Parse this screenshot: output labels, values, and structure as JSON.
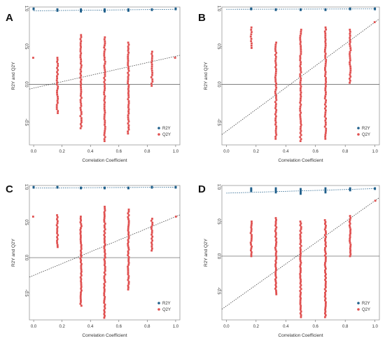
{
  "legend": {
    "r2_label": "R2Y",
    "q2_label": "Q2Y"
  },
  "colors": {
    "r2": "#1f5f8b",
    "q2": "#e05050",
    "frame": "#999999",
    "zero_line": "#555555",
    "trend": "#444444"
  },
  "chart_data": [
    {
      "panel": "A",
      "type": "scatter",
      "xlabel": "Correlation Coefficient",
      "ylabel": "R2Y and Q2Y",
      "xlim": [
        -0.03,
        1.03
      ],
      "ylim": [
        -0.8,
        1.02
      ],
      "x_ticks": [
        "0.0",
        "0.2",
        "0.4",
        "0.6",
        "0.8",
        "1.0"
      ],
      "y_ticks": [
        {
          "v": 1.0,
          "t": "1.0"
        },
        {
          "v": 0.5,
          "t": "0.5"
        },
        {
          "v": 0.0,
          "t": "0.0"
        },
        {
          "v": -0.5,
          "t": "-0.5"
        }
      ],
      "r2_clusters": [
        {
          "x": 0.0,
          "min": 0.99,
          "max": 1.0
        },
        {
          "x": 0.167,
          "min": 0.97,
          "max": 0.99
        },
        {
          "x": 0.333,
          "min": 0.96,
          "max": 0.99
        },
        {
          "x": 0.5,
          "min": 0.96,
          "max": 0.99
        },
        {
          "x": 0.667,
          "min": 0.97,
          "max": 0.99
        },
        {
          "x": 0.833,
          "min": 0.98,
          "max": 0.99
        },
        {
          "x": 1.0,
          "min": 0.99,
          "max": 1.0
        }
      ],
      "q2_clusters": [
        {
          "x": 0.0,
          "min": 0.35,
          "max": 0.35
        },
        {
          "x": 0.167,
          "min": -0.38,
          "max": 0.35
        },
        {
          "x": 0.333,
          "min": -0.58,
          "max": 0.65
        },
        {
          "x": 0.5,
          "min": -0.75,
          "max": 0.62
        },
        {
          "x": 0.667,
          "min": -0.65,
          "max": 0.55
        },
        {
          "x": 0.833,
          "min": -0.02,
          "max": 0.43
        },
        {
          "x": 1.0,
          "min": 0.35,
          "max": 0.35
        }
      ],
      "r2_trend": [
        0.97,
        0.99
      ],
      "q2_trend": [
        -0.05,
        0.37
      ]
    },
    {
      "panel": "B",
      "type": "scatter",
      "xlabel": "Correlation Coefficient",
      "ylabel": "R2Y and Q2Y",
      "xlim": [
        -0.03,
        1.03
      ],
      "ylim": [
        -0.8,
        1.02
      ],
      "x_ticks": [
        "0.0",
        "0.2",
        "0.4",
        "0.6",
        "0.8",
        "1.0"
      ],
      "y_ticks": [
        {
          "v": 1.0,
          "t": "1.0"
        },
        {
          "v": 0.5,
          "t": "0.5"
        },
        {
          "v": 0.0,
          "t": "0.0"
        },
        {
          "v": -0.5,
          "t": "-0.5"
        }
      ],
      "r2_clusters": [
        {
          "x": 0.167,
          "min": 0.99,
          "max": 1.0
        },
        {
          "x": 0.333,
          "min": 0.98,
          "max": 0.99
        },
        {
          "x": 0.5,
          "min": 0.98,
          "max": 0.99
        },
        {
          "x": 0.667,
          "min": 0.98,
          "max": 0.99
        },
        {
          "x": 0.833,
          "min": 0.99,
          "max": 1.0
        },
        {
          "x": 1.0,
          "min": 0.99,
          "max": 1.0
        }
      ],
      "q2_clusters": [
        {
          "x": 0.167,
          "min": 0.48,
          "max": 0.75
        },
        {
          "x": 0.333,
          "min": -0.72,
          "max": 0.55
        },
        {
          "x": 0.5,
          "min": -0.75,
          "max": 0.72
        },
        {
          "x": 0.667,
          "min": -0.72,
          "max": 0.75
        },
        {
          "x": 0.833,
          "min": 0.02,
          "max": 0.72
        },
        {
          "x": 1.0,
          "min": 0.82,
          "max": 0.82
        }
      ],
      "r2_trend": [
        0.99,
        0.995
      ],
      "q2_trend": [
        -0.62,
        0.82
      ]
    },
    {
      "panel": "C",
      "type": "scatter",
      "xlabel": "Correlation Coefficient",
      "ylabel": "R2Y and Q2Y",
      "xlim": [
        -0.03,
        1.03
      ],
      "ylim": [
        -0.88,
        1.02
      ],
      "x_ticks": [
        "0.0",
        "0.2",
        "0.4",
        "0.6",
        "0.8",
        "1.0"
      ],
      "y_ticks": [
        {
          "v": 1.0,
          "t": "1.0"
        },
        {
          "v": 0.5,
          "t": "0.5"
        },
        {
          "v": 0.0,
          "t": "0.0"
        },
        {
          "v": -0.5,
          "t": "-0.5"
        }
      ],
      "r2_clusters": [
        {
          "x": 0.0,
          "min": 0.99,
          "max": 1.0
        },
        {
          "x": 0.167,
          "min": 0.99,
          "max": 1.0
        },
        {
          "x": 0.333,
          "min": 0.98,
          "max": 0.99
        },
        {
          "x": 0.5,
          "min": 0.98,
          "max": 0.99
        },
        {
          "x": 0.667,
          "min": 0.98,
          "max": 0.99
        },
        {
          "x": 0.833,
          "min": 0.99,
          "max": 1.0
        },
        {
          "x": 1.0,
          "min": 0.99,
          "max": 1.0
        }
      ],
      "q2_clusters": [
        {
          "x": 0.0,
          "min": 0.58,
          "max": 0.58
        },
        {
          "x": 0.167,
          "min": 0.15,
          "max": 0.6
        },
        {
          "x": 0.333,
          "min": -0.68,
          "max": 0.58
        },
        {
          "x": 0.5,
          "min": -0.85,
          "max": 0.72
        },
        {
          "x": 0.667,
          "min": -0.45,
          "max": 0.68
        },
        {
          "x": 0.833,
          "min": 0.1,
          "max": 0.55
        },
        {
          "x": 1.0,
          "min": 0.58,
          "max": 0.58
        }
      ],
      "r2_trend": [
        0.985,
        0.995
      ],
      "q2_trend": [
        -0.25,
        0.58
      ]
    },
    {
      "panel": "D",
      "type": "scatter",
      "xlabel": "Correlation Coefficient",
      "ylabel": "R2Y and Q2Y",
      "xlim": [
        -0.03,
        1.03
      ],
      "ylim": [
        -0.92,
        1.02
      ],
      "x_ticks": [
        "0.0",
        "0.2",
        "0.4",
        "0.6",
        "0.8",
        "1.0"
      ],
      "y_ticks": [
        {
          "v": 1.0,
          "t": "1.0"
        },
        {
          "v": 0.5,
          "t": "0.5"
        },
        {
          "v": 0.0,
          "t": "0.0"
        },
        {
          "v": -0.5,
          "t": "-0.5"
        }
      ],
      "r2_clusters": [
        {
          "x": 0.167,
          "min": 0.94,
          "max": 0.98
        },
        {
          "x": 0.333,
          "min": 0.92,
          "max": 0.98
        },
        {
          "x": 0.5,
          "min": 0.9,
          "max": 0.97
        },
        {
          "x": 0.667,
          "min": 0.92,
          "max": 0.98
        },
        {
          "x": 0.833,
          "min": 0.95,
          "max": 0.98
        },
        {
          "x": 1.0,
          "min": 0.97,
          "max": 0.98
        }
      ],
      "q2_clusters": [
        {
          "x": 0.167,
          "min": 0.0,
          "max": 0.5
        },
        {
          "x": 0.333,
          "min": -0.55,
          "max": 0.55
        },
        {
          "x": 0.5,
          "min": -0.88,
          "max": 0.5
        },
        {
          "x": 0.667,
          "min": -0.88,
          "max": 0.52
        },
        {
          "x": 0.833,
          "min": 0.0,
          "max": 0.58
        },
        {
          "x": 1.0,
          "min": 0.8,
          "max": 0.8
        }
      ],
      "r2_trend": [
        0.91,
        0.975
      ],
      "q2_trend": [
        -0.72,
        0.8
      ]
    }
  ]
}
